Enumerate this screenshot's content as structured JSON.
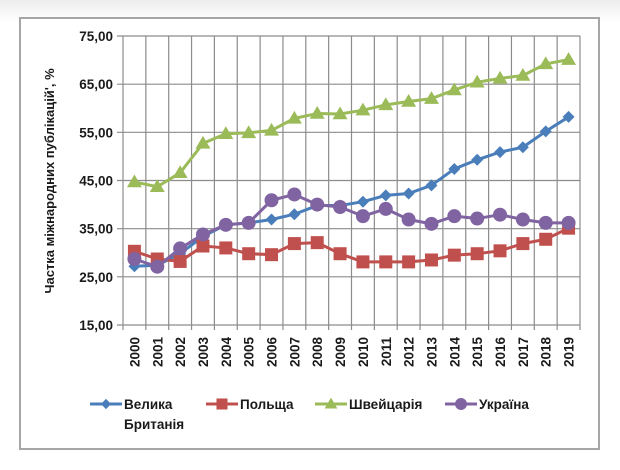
{
  "chart_data": {
    "type": "line",
    "title": "",
    "xlabel": "",
    "ylabel": "Частка міжнародних публікацій', %",
    "ylim": [
      15,
      75
    ],
    "y_ticks": [
      "15,00",
      "25,00",
      "35,00",
      "45,00",
      "55,00",
      "65,00",
      "75,00"
    ],
    "y_tick_values": [
      15,
      25,
      35,
      45,
      55,
      65,
      75
    ],
    "grid": "both",
    "legend_position": "bottom",
    "categories": [
      "2000",
      "2001",
      "2002",
      "2003",
      "2004",
      "2005",
      "2006",
      "2007",
      "2008",
      "2009",
      "2010",
      "2011",
      "2012",
      "2013",
      "2014",
      "2015",
      "2016",
      "2017",
      "2018",
      "2019"
    ],
    "series": [
      {
        "name": "Велика Британія",
        "legend_lines": [
          "Велика",
          "Британія"
        ],
        "color": "#4a7ebb",
        "marker": "diamond",
        "values": [
          27.2,
          27.4,
          29.8,
          33.4,
          35.8,
          36.2,
          36.9,
          38.0,
          39.8,
          39.8,
          40.6,
          41.9,
          42.3,
          44.0,
          47.4,
          49.3,
          50.9,
          51.9,
          55.2,
          58.2
        ]
      },
      {
        "name": "Польща",
        "legend_lines": [
          "Польща"
        ],
        "color": "#c0504d",
        "marker": "square",
        "values": [
          30.3,
          28.7,
          28.2,
          31.4,
          31.0,
          29.8,
          29.6,
          31.9,
          32.1,
          29.8,
          28.1,
          28.1,
          28.1,
          28.5,
          29.5,
          29.8,
          30.4,
          31.9,
          32.8,
          35.1
        ]
      },
      {
        "name": "Швейцарія",
        "legend_lines": [
          "Швейцарія"
        ],
        "color": "#9bbb59",
        "marker": "triangle",
        "values": [
          44.7,
          43.7,
          46.6,
          52.7,
          54.7,
          54.9,
          55.4,
          57.9,
          58.9,
          58.8,
          59.6,
          60.7,
          61.4,
          62.0,
          63.8,
          65.4,
          66.2,
          66.8,
          69.2,
          70.1
        ]
      },
      {
        "name": "Україна",
        "legend_lines": [
          "Україна"
        ],
        "color": "#8064a2",
        "marker": "circle",
        "values": [
          28.7,
          27.1,
          30.9,
          33.8,
          35.8,
          36.2,
          40.9,
          42.1,
          40.0,
          39.5,
          37.6,
          39.1,
          36.9,
          36.0,
          37.6,
          37.1,
          37.9,
          36.9,
          36.2,
          36.2
        ]
      }
    ]
  }
}
